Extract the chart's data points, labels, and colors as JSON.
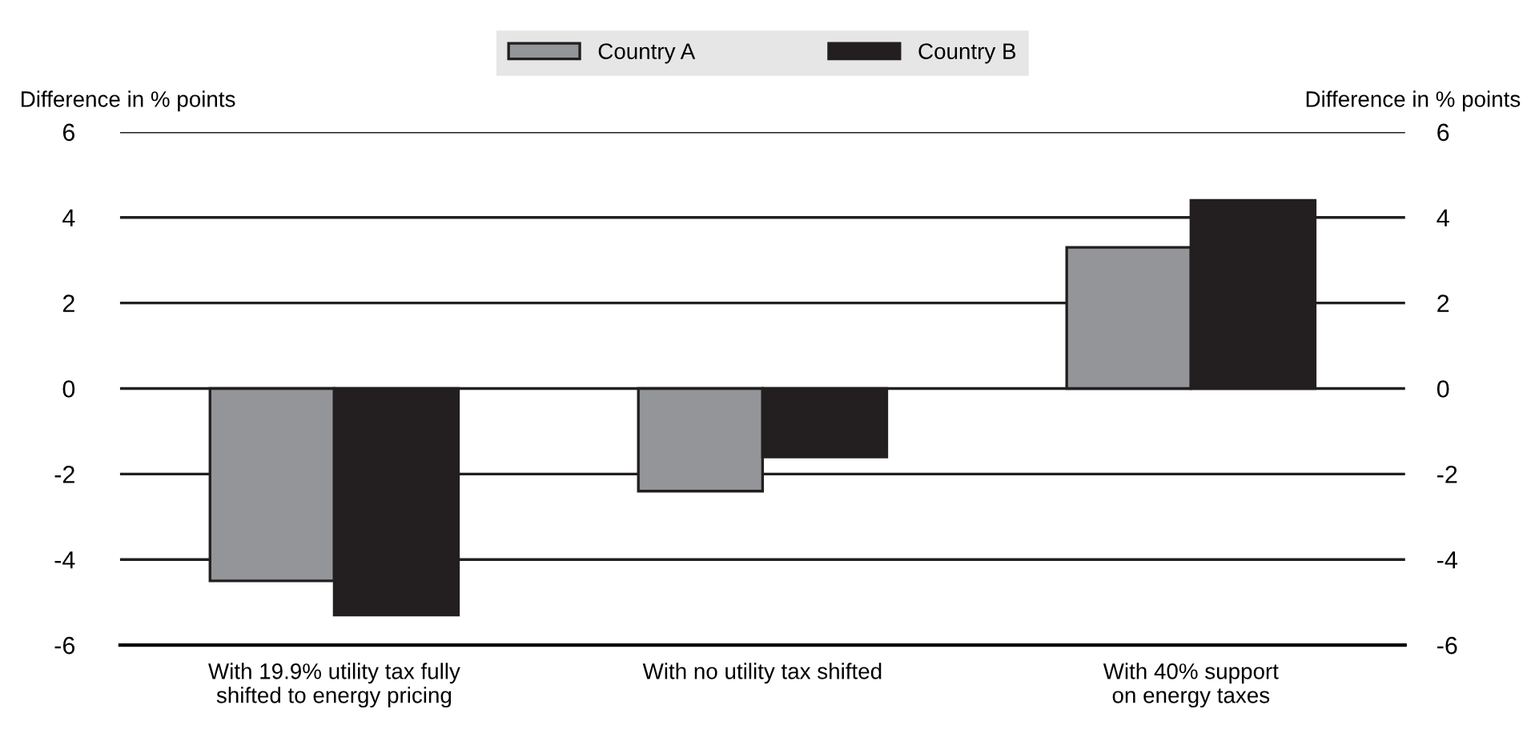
{
  "chart_data": {
    "type": "bar",
    "categories": [
      "With 19.9% utility tax fully\nshifted to energy pricing",
      "With no utility tax shifted",
      "With 40% support\non energy taxes"
    ],
    "series": [
      {
        "name": "Country A",
        "color": "#939598",
        "values": [
          -4.5,
          -2.4,
          3.3
        ]
      },
      {
        "name": "Country B",
        "color": "#231f20",
        "values": [
          -5.3,
          -1.6,
          4.4
        ]
      }
    ],
    "ylabel": "Difference in % points",
    "y2label": "Difference in % points",
    "ylim": [
      -6,
      6
    ],
    "yticks": [
      {
        "value": -6,
        "label": "-6"
      },
      {
        "value": -4,
        "label": "-4"
      },
      {
        "value": -2,
        "label": "-2"
      },
      0,
      2,
      4,
      6
    ],
    "y2lim": [
      -6,
      6
    ],
    "y2ticks": [
      {
        "value": -6,
        "label": "-6"
      },
      {
        "value": -4,
        "label": "-4"
      },
      {
        "value": -2,
        "label": "-2"
      },
      0,
      2,
      4,
      6
    ],
    "grid": "y",
    "legend": "top"
  }
}
